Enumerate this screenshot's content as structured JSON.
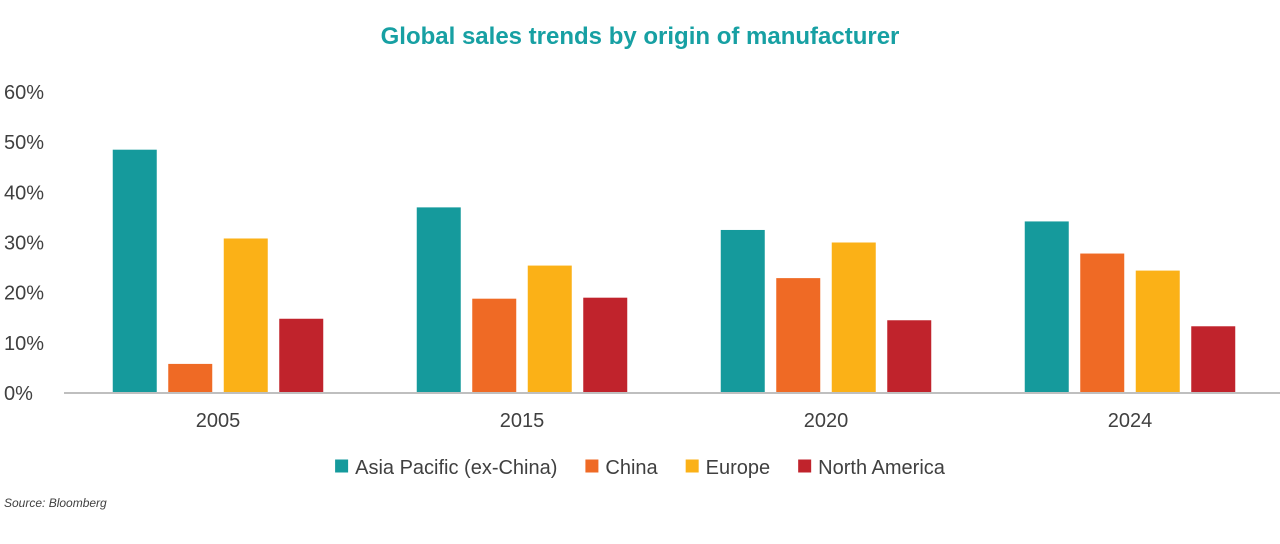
{
  "chart_data": {
    "type": "bar",
    "title": "Global sales trends by origin of manufacturer",
    "categories": [
      "2005",
      "2015",
      "2020",
      "2024"
    ],
    "series": [
      {
        "name": "Asia Pacific (ex-China)",
        "color": "#159A9C",
        "values": [
          48.5,
          37,
          32.5,
          34.2
        ]
      },
      {
        "name": "China",
        "color": "#EF6A25",
        "values": [
          5.8,
          18.8,
          22.9,
          27.8
        ]
      },
      {
        "name": "Europe",
        "color": "#FBB117",
        "values": [
          30.8,
          25.4,
          30,
          24.4
        ]
      },
      {
        "name": "North America",
        "color": "#C0232C",
        "values": [
          14.8,
          19,
          14.5,
          13.3
        ]
      }
    ],
    "ylim": [
      0,
      60
    ],
    "yticks": [
      "0%",
      "10%",
      "20%",
      "30%",
      "40%",
      "50%",
      "60%"
    ],
    "ytick_values": [
      0,
      10,
      20,
      30,
      40,
      50,
      60
    ],
    "grid": false,
    "legend_position": "bottom"
  },
  "title_color": "#17A0A3",
  "axis_color": "#BFBFBF",
  "source_note": "Source: Bloomberg"
}
